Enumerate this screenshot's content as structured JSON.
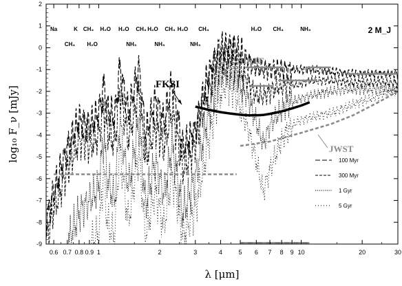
{
  "chart_data": {
    "type": "line",
    "title": "",
    "xlabel": "λ [μm]",
    "ylabel": "log₁₀ F_ν [mJy]",
    "xscale": "log",
    "xlim": [
      0.55,
      30
    ],
    "ylim": [
      -9,
      2
    ],
    "grid": false,
    "legend_position": "bottom-right",
    "mass_label": "2 M_J",
    "y_ticks": [
      2,
      1,
      0,
      -1,
      -2,
      -3,
      -4,
      -5,
      -6,
      -7,
      -8,
      -9
    ],
    "x_ticks": [
      {
        "value": 0.6,
        "label": "0.6"
      },
      {
        "value": 0.7,
        "label": "0.7"
      },
      {
        "value": 0.8,
        "label": "0.8"
      },
      {
        "value": 0.9,
        "label": "0.9"
      },
      {
        "value": 1,
        "label": "1"
      },
      {
        "value": 2,
        "label": "2"
      },
      {
        "value": 3,
        "label": "3"
      },
      {
        "value": 4,
        "label": "4"
      },
      {
        "value": 5,
        "label": "5"
      },
      {
        "value": 6,
        "label": "6"
      },
      {
        "value": 7,
        "label": "7"
      },
      {
        "value": 8,
        "label": "8"
      },
      {
        "value": 9,
        "label": "9"
      },
      {
        "value": 10,
        "label": "10"
      },
      {
        "value": 20,
        "label": "20"
      },
      {
        "value": 30,
        "label": "30"
      }
    ],
    "molecule_labels": [
      {
        "text": "Na",
        "x": 0.6,
        "row": 1
      },
      {
        "text": "K",
        "x": 0.77,
        "row": 1
      },
      {
        "text": "CH₄",
        "x": 0.89,
        "row": 1
      },
      {
        "text": "CH₄",
        "x": 0.72,
        "row": 2
      },
      {
        "text": "H₂O",
        "x": 1.08,
        "row": 1
      },
      {
        "text": "H₂O",
        "x": 0.93,
        "row": 2
      },
      {
        "text": "H₂O",
        "x": 1.33,
        "row": 1
      },
      {
        "text": "NH₃",
        "x": 1.45,
        "row": 2
      },
      {
        "text": "CH₄",
        "x": 1.62,
        "row": 1
      },
      {
        "text": "H₂O",
        "x": 1.85,
        "row": 1
      },
      {
        "text": "NH₃",
        "x": 2.0,
        "row": 2
      },
      {
        "text": "CH₄",
        "x": 2.25,
        "row": 1
      },
      {
        "text": "H₂O",
        "x": 2.6,
        "row": 1
      },
      {
        "text": "CH₄",
        "x": 3.3,
        "row": 1
      },
      {
        "text": "NH₃",
        "x": 3.0,
        "row": 2
      },
      {
        "text": "H₂O",
        "x": 6.0,
        "row": 1
      },
      {
        "text": "CH₄",
        "x": 7.7,
        "row": 1
      },
      {
        "text": "NH₃",
        "x": 10.5,
        "row": 1
      }
    ],
    "series": [
      {
        "name": "100 Myr",
        "style": "long-dash",
        "x": [
          0.55,
          0.6,
          0.7,
          0.8,
          0.9,
          1.0,
          1.06,
          1.1,
          1.2,
          1.27,
          1.4,
          1.58,
          1.7,
          1.9,
          2.1,
          2.3,
          2.6,
          3.0,
          3.4,
          3.8,
          4.1,
          4.3,
          4.6,
          5.0,
          5.5,
          6.0,
          6.5,
          7.0,
          7.7,
          8.5,
          9.5,
          11,
          14,
          18,
          24,
          30
        ],
        "y": [
          -8.0,
          -6.6,
          -4.6,
          -3.3,
          -3.6,
          -3.0,
          -1.7,
          -2.8,
          -3.2,
          -0.9,
          -3.0,
          -0.9,
          -4.0,
          -2.4,
          -3.4,
          -1.6,
          -4.6,
          -3.8,
          -1.6,
          -0.4,
          -0.05,
          -0.1,
          0.05,
          -0.3,
          -0.6,
          -0.9,
          -1.0,
          -1.0,
          -1.0,
          -1.0,
          -1.0,
          -1.0,
          -1.1,
          -1.2,
          -1.2,
          -1.2
        ]
      },
      {
        "name": "300 Myr",
        "style": "dash",
        "x": [
          0.55,
          0.6,
          0.7,
          0.8,
          0.9,
          1.0,
          1.06,
          1.1,
          1.2,
          1.27,
          1.4,
          1.58,
          1.7,
          1.9,
          2.1,
          2.3,
          2.6,
          3.0,
          3.4,
          3.8,
          4.1,
          4.3,
          4.6,
          5.0,
          5.5,
          6.0,
          6.5,
          7.0,
          7.7,
          8.5,
          9.5,
          11,
          14,
          18,
          24,
          30
        ],
        "y": [
          -8.8,
          -7.4,
          -5.6,
          -4.2,
          -4.5,
          -4.0,
          -2.8,
          -3.8,
          -4.4,
          -2.0,
          -4.2,
          -2.0,
          -5.2,
          -3.6,
          -4.6,
          -2.8,
          -5.6,
          -4.4,
          -2.2,
          -1.0,
          -0.6,
          -0.6,
          -0.6,
          -1.0,
          -1.6,
          -2.2,
          -2.2,
          -2.0,
          -1.8,
          -1.7,
          -1.7,
          -1.5,
          -1.5,
          -1.6,
          -1.6,
          -1.6
        ]
      },
      {
        "name": "1 Gyr",
        "style": "dot",
        "x": [
          0.7,
          0.8,
          0.9,
          1.0,
          1.06,
          1.1,
          1.2,
          1.27,
          1.4,
          1.58,
          1.7,
          1.9,
          2.1,
          2.3,
          2.6,
          3.0,
          3.4,
          3.8,
          4.1,
          4.3,
          4.6,
          5.0,
          5.5,
          6.0,
          6.5,
          7.0,
          7.7,
          8.5,
          9.5,
          11,
          14,
          18,
          24,
          30
        ],
        "y": [
          -9.0,
          -7.6,
          -7.0,
          -6.4,
          -4.0,
          -6.0,
          -7.0,
          -3.3,
          -6.4,
          -3.4,
          -7.2,
          -5.2,
          -6.8,
          -4.4,
          -7.6,
          -6.0,
          -3.4,
          -1.6,
          -1.0,
          -1.0,
          -1.1,
          -1.6,
          -2.4,
          -3.4,
          -4.4,
          -3.6,
          -3.0,
          -2.6,
          -2.4,
          -2.2,
          -2.0,
          -1.9,
          -1.9,
          -1.9
        ]
      },
      {
        "name": "5 Gyr",
        "style": "sparse-dot",
        "x": [
          0.9,
          1.0,
          1.06,
          1.1,
          1.2,
          1.27,
          1.4,
          1.58,
          1.7,
          1.9,
          2.1,
          2.3,
          2.6,
          3.0,
          3.4,
          3.8,
          4.1,
          4.3,
          4.6,
          5.0,
          5.5,
          6.0,
          6.5,
          7.0,
          7.7,
          8.5,
          9.5,
          11,
          14,
          18,
          24,
          30
        ],
        "y": [
          -9.0,
          -8.6,
          -5.6,
          -8.0,
          -8.6,
          -4.6,
          -8.0,
          -4.8,
          -8.6,
          -6.6,
          -8.2,
          -5.8,
          -8.6,
          -7.4,
          -4.8,
          -2.6,
          -1.8,
          -1.6,
          -1.8,
          -2.6,
          -3.8,
          -5.2,
          -6.6,
          -5.6,
          -4.6,
          -3.8,
          -3.4,
          -3.2,
          -3.0,
          -2.6,
          -2.2,
          -1.9
        ]
      }
    ],
    "sensitivity_curves": [
      {
        "name": "FKSI",
        "color": "#000000",
        "x": [
          3.0,
          3.5,
          4.0,
          4.5,
          5.0,
          5.5,
          6.0,
          6.5,
          7.0,
          8.0,
          9.0,
          10.0,
          11.0
        ],
        "y": [
          -2.7,
          -2.85,
          -2.95,
          -3.02,
          -3.07,
          -3.1,
          -3.1,
          -3.08,
          -3.03,
          -2.92,
          -2.78,
          -2.65,
          -2.5
        ]
      },
      {
        "name": "JWST",
        "color": "#8a8a8a",
        "x": [
          0.6,
          1.0,
          2.0,
          3.0,
          4.0,
          4.8
        ],
        "y": [
          -5.8,
          -5.8,
          -5.8,
          -5.8,
          -5.8,
          -5.8
        ]
      },
      {
        "name": "JWST",
        "color": "#8a8a8a",
        "x": [
          5.0,
          7.0,
          10.0,
          14.0,
          18.0,
          24.0,
          30.0
        ],
        "y": [
          -4.5,
          -4.3,
          -3.9,
          -3.5,
          -3.1,
          -2.5,
          -2.0
        ]
      }
    ],
    "sirtf_segments": [
      {
        "x": [
          5.3,
          8.2
        ],
        "y": -0.9
      },
      {
        "x": [
          5.6,
          7.3
        ],
        "y": -1.75
      },
      {
        "x": [
          7.7,
          12.0
        ],
        "y": -1.5
      },
      {
        "x": [
          10.5,
          14.0
        ],
        "y": -0.9
      },
      {
        "x": [
          17.0,
          30.0
        ],
        "y": -1.2
      }
    ],
    "annotations": [
      {
        "text": "FKSI",
        "color": "#000000"
      },
      {
        "text": "SIRTF",
        "color": "#8a8a8a"
      },
      {
        "text": "JWST",
        "color": "#8a8a8a"
      }
    ]
  }
}
